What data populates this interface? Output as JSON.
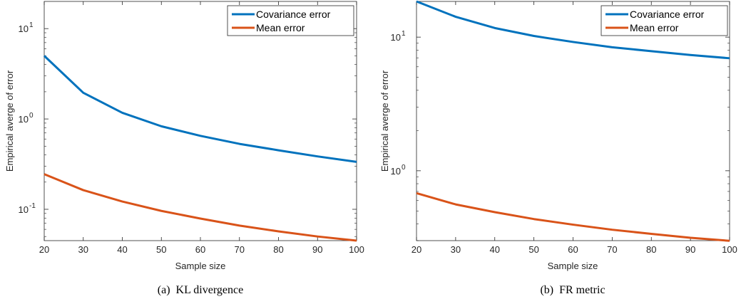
{
  "chart_data": [
    {
      "type": "line",
      "caption": "(a)  KL divergence",
      "xlabel": "Sample size",
      "ylabel": "Empirical averge of error",
      "x": [
        20,
        30,
        40,
        50,
        60,
        70,
        80,
        90,
        100
      ],
      "xlim": [
        20,
        100
      ],
      "xticks": [
        "20",
        "30",
        "40",
        "50",
        "60",
        "70",
        "80",
        "90",
        "100"
      ],
      "yscale": "log",
      "ylim": [
        0.045,
        20
      ],
      "yticks": [
        {
          "value": 0.1,
          "base": "10",
          "exp": "-1"
        },
        {
          "value": 1,
          "base": "10",
          "exp": "0"
        },
        {
          "value": 10,
          "base": "10",
          "exp": "1"
        }
      ],
      "legend": "top-right",
      "series": [
        {
          "name": "Covariance error",
          "color": "#0072BD",
          "values": [
            5.0,
            1.95,
            1.17,
            0.83,
            0.65,
            0.53,
            0.45,
            0.385,
            0.335
          ]
        },
        {
          "name": "Mean error",
          "color": "#D95319",
          "values": [
            0.245,
            0.163,
            0.122,
            0.096,
            0.079,
            0.066,
            0.057,
            0.05,
            0.045
          ]
        }
      ]
    },
    {
      "type": "line",
      "caption": "(b)  FR metric",
      "xlabel": "Sample size",
      "ylabel": "Empirical averge of error",
      "x": [
        20,
        30,
        40,
        50,
        60,
        70,
        80,
        90,
        100
      ],
      "xlim": [
        20,
        100
      ],
      "xticks": [
        "20",
        "30",
        "40",
        "50",
        "60",
        "70",
        "80",
        "90",
        "100"
      ],
      "yscale": "log",
      "ylim": [
        0.3,
        18.5
      ],
      "yticks": [
        {
          "value": 1,
          "base": "10",
          "exp": "0"
        },
        {
          "value": 10,
          "base": "10",
          "exp": "1"
        }
      ],
      "legend": "top-right",
      "series": [
        {
          "name": "Covariance error",
          "color": "#0072BD",
          "values": [
            18.5,
            14.2,
            11.7,
            10.2,
            9.2,
            8.4,
            7.85,
            7.35,
            6.95
          ]
        },
        {
          "name": "Mean error",
          "color": "#D95319",
          "values": [
            0.68,
            0.56,
            0.49,
            0.435,
            0.395,
            0.362,
            0.337,
            0.315,
            0.299
          ]
        }
      ]
    }
  ]
}
